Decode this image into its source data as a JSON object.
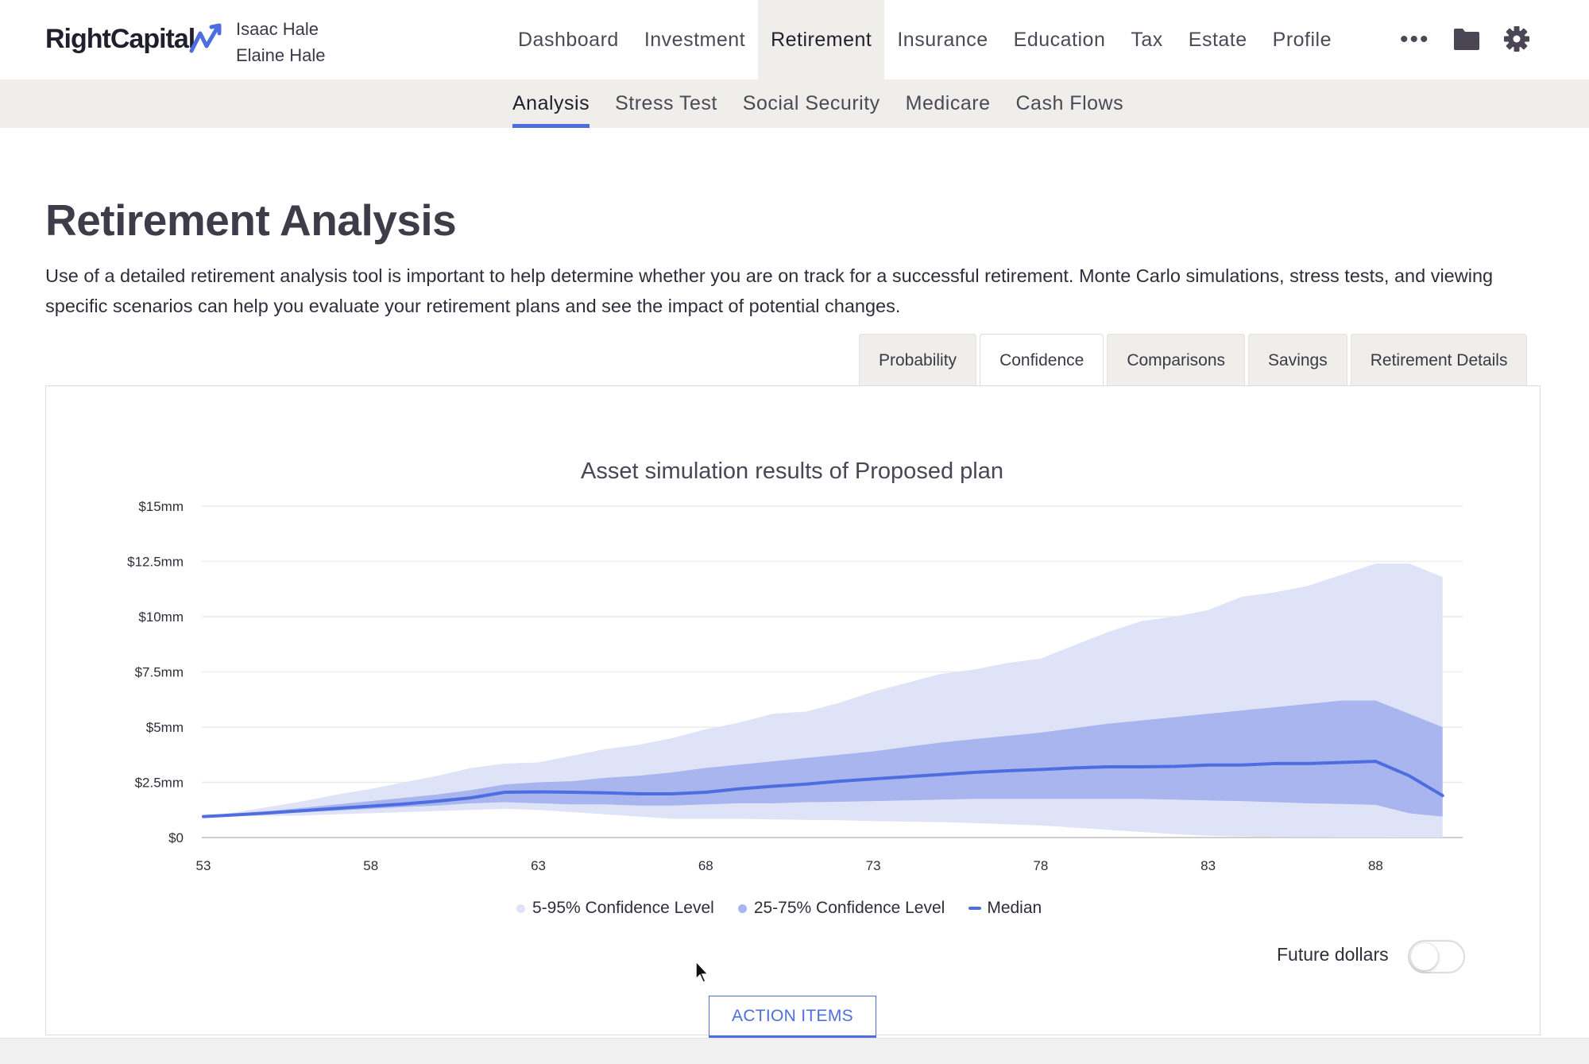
{
  "app": {
    "logo_text": "RightCapital",
    "clients": [
      "Isaac Hale",
      "Elaine Hale"
    ]
  },
  "main_nav": [
    {
      "label": "Dashboard",
      "active": false
    },
    {
      "label": "Investment",
      "active": false
    },
    {
      "label": "Retirement",
      "active": true
    },
    {
      "label": "Insurance",
      "active": false
    },
    {
      "label": "Education",
      "active": false
    },
    {
      "label": "Tax",
      "active": false
    },
    {
      "label": "Estate",
      "active": false
    },
    {
      "label": "Profile",
      "active": false
    }
  ],
  "nav_icons": [
    "more-icon",
    "folder-icon",
    "gear-icon"
  ],
  "sub_nav": [
    {
      "label": "Analysis",
      "active": true
    },
    {
      "label": "Stress Test",
      "active": false
    },
    {
      "label": "Social Security",
      "active": false
    },
    {
      "label": "Medicare",
      "active": false
    },
    {
      "label": "Cash Flows",
      "active": false
    }
  ],
  "page": {
    "title": "Retirement Analysis",
    "description": "Use of a detailed retirement analysis tool is important to help determine whether you are on track for a successful retirement. Monte Carlo simulations, stress tests, and viewing specific scenarios can help you evaluate your retirement plans and see the impact of potential changes."
  },
  "tabs": [
    {
      "label": "Probability",
      "active": false
    },
    {
      "label": "Confidence",
      "active": true
    },
    {
      "label": "Comparisons",
      "active": false
    },
    {
      "label": "Savings",
      "active": false
    },
    {
      "label": "Retirement Details",
      "active": false
    }
  ],
  "colors": {
    "accent": "#4e6ee0",
    "band_outer": "#dfe3f7",
    "band_inner": "#a8b5ee",
    "median": "#4e6ee0",
    "subbar": "#efeeea"
  },
  "chart_data": {
    "type": "area",
    "title": "Asset simulation results of Proposed plan",
    "xlabel": "",
    "ylabel": "",
    "x": [
      53,
      54,
      55,
      56,
      57,
      58,
      59,
      60,
      61,
      62,
      63,
      64,
      65,
      66,
      67,
      68,
      69,
      70,
      71,
      72,
      73,
      74,
      75,
      76,
      77,
      78,
      79,
      80,
      81,
      82,
      83,
      84,
      85,
      86,
      87,
      88,
      89,
      90
    ],
    "x_ticks": [
      "53",
      "58",
      "63",
      "68",
      "73",
      "78",
      "83",
      "88"
    ],
    "y_ticks": [
      "$0",
      "$2.5mm",
      "$5mm",
      "$7.5mm",
      "$10mm",
      "$12.5mm",
      "$15mm"
    ],
    "xlim": [
      53,
      90.6
    ],
    "ylim": [
      0,
      15
    ],
    "y_unit": "$mm",
    "grid": true,
    "legend_position": "bottom",
    "series": [
      {
        "name": "5-95% Confidence Level",
        "kind": "band",
        "low": [
          0.95,
          0.97,
          0.98,
          1.0,
          1.05,
          1.1,
          1.15,
          1.2,
          1.25,
          1.3,
          1.25,
          1.15,
          1.05,
          0.95,
          0.85,
          0.85,
          0.85,
          0.82,
          0.8,
          0.78,
          0.75,
          0.72,
          0.7,
          0.65,
          0.6,
          0.55,
          0.45,
          0.35,
          0.25,
          0.15,
          0.08,
          0.05,
          0.03,
          0.02,
          0.01,
          0.01,
          0.0,
          0.0
        ],
        "high": [
          0.95,
          1.15,
          1.4,
          1.65,
          1.95,
          2.2,
          2.5,
          2.8,
          3.15,
          3.35,
          3.4,
          3.7,
          4.0,
          4.2,
          4.5,
          4.9,
          5.2,
          5.6,
          5.7,
          6.1,
          6.6,
          7.0,
          7.4,
          7.6,
          7.9,
          8.1,
          8.7,
          9.3,
          9.8,
          10.0,
          10.3,
          10.9,
          11.1,
          11.4,
          11.9,
          12.4,
          12.4,
          11.8
        ]
      },
      {
        "name": "25-75% Confidence Level",
        "kind": "band",
        "low": [
          0.95,
          1.02,
          1.08,
          1.15,
          1.22,
          1.3,
          1.38,
          1.45,
          1.55,
          1.6,
          1.55,
          1.5,
          1.5,
          1.45,
          1.45,
          1.5,
          1.55,
          1.55,
          1.6,
          1.62,
          1.65,
          1.68,
          1.72,
          1.75,
          1.75,
          1.75,
          1.75,
          1.75,
          1.75,
          1.72,
          1.68,
          1.65,
          1.6,
          1.55,
          1.52,
          1.48,
          1.1,
          0.95
        ],
        "high": [
          0.95,
          1.08,
          1.2,
          1.35,
          1.5,
          1.65,
          1.8,
          1.95,
          2.15,
          2.4,
          2.5,
          2.55,
          2.7,
          2.8,
          2.95,
          3.15,
          3.3,
          3.45,
          3.6,
          3.75,
          3.9,
          4.1,
          4.3,
          4.45,
          4.6,
          4.75,
          4.95,
          5.15,
          5.3,
          5.45,
          5.6,
          5.75,
          5.9,
          6.05,
          6.2,
          6.2,
          5.6,
          5.0
        ]
      },
      {
        "name": "Median",
        "kind": "line",
        "values": [
          0.95,
          1.03,
          1.12,
          1.22,
          1.32,
          1.42,
          1.52,
          1.65,
          1.8,
          2.05,
          2.07,
          2.05,
          2.02,
          1.98,
          1.98,
          2.05,
          2.2,
          2.32,
          2.42,
          2.55,
          2.65,
          2.75,
          2.85,
          2.95,
          3.02,
          3.08,
          3.15,
          3.2,
          3.2,
          3.22,
          3.28,
          3.28,
          3.35,
          3.35,
          3.4,
          3.45,
          2.8,
          1.9
        ]
      }
    ]
  },
  "future_dollars": {
    "label": "Future dollars",
    "enabled": false
  },
  "action_button": {
    "label": "ACTION ITEMS"
  }
}
